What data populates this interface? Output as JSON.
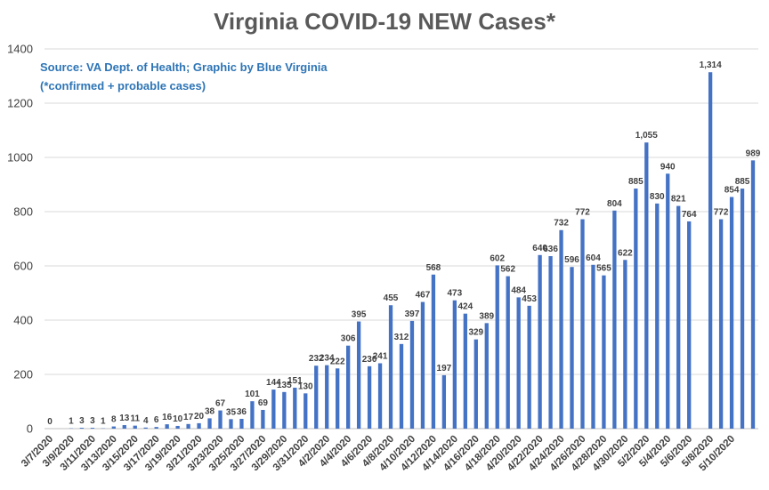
{
  "chart_data": {
    "type": "bar",
    "title": "Virginia COVID-19 NEW Cases*",
    "annotations": [
      "Source: VA Dept. of Health; Graphic by Blue Virginia",
      "(*confirmed + probable cases)"
    ],
    "ylim": [
      0,
      1400
    ],
    "yticks": [
      0,
      200,
      400,
      600,
      800,
      1000,
      1200,
      1400
    ],
    "grid": true,
    "legend": "none",
    "bar_color": "#4472c4",
    "x_tick_labels": [
      "3/7/2020",
      "3/9/2020",
      "3/11/2020",
      "3/13/2020",
      "3/15/2020",
      "3/17/2020",
      "3/19/2020",
      "3/21/2020",
      "3/23/2020",
      "3/25/2020",
      "3/27/2020",
      "3/29/2020",
      "3/31/2020",
      "4/2/2020",
      "4/4/2020",
      "4/6/2020",
      "4/8/2020",
      "4/10/2020",
      "4/12/2020",
      "4/14/2020",
      "4/16/2020",
      "4/18/2020",
      "4/20/2020",
      "4/22/2020",
      "4/24/2020",
      "4/26/2020",
      "4/28/2020",
      "4/30/2020",
      "5/2/2020",
      "5/4/2020",
      "5/6/2020",
      "5/8/2020",
      "5/10/2020"
    ],
    "data_labels": [
      "0",
      "",
      "1",
      "3",
      "3",
      "1",
      "8",
      "13",
      "11",
      "4",
      "6",
      "16",
      "10",
      "17",
      "20",
      "38",
      "67",
      "35",
      "36",
      "101",
      "69",
      "144",
      "135",
      "151",
      "130",
      "232",
      "234",
      "222",
      "306",
      "395",
      "230",
      "241",
      "455",
      "312",
      "397",
      "467",
      "568",
      "197",
      "473",
      "424",
      "329",
      "389",
      "602",
      "562",
      "484",
      "453",
      "640",
      "636",
      "732",
      "596",
      "772",
      "604",
      "565",
      "804",
      "622",
      "885",
      "1,055",
      "830",
      "940",
      "821",
      "764",
      "",
      "1,314",
      "772",
      "854",
      "885",
      "989"
    ],
    "values": [
      0,
      null,
      1,
      3,
      3,
      1,
      8,
      13,
      11,
      4,
      6,
      16,
      10,
      17,
      20,
      38,
      67,
      35,
      36,
      101,
      69,
      144,
      135,
      151,
      130,
      232,
      234,
      222,
      306,
      395,
      230,
      241,
      455,
      312,
      397,
      467,
      568,
      197,
      473,
      424,
      329,
      389,
      602,
      562,
      484,
      453,
      640,
      636,
      732,
      596,
      772,
      604,
      565,
      804,
      622,
      885,
      1055,
      830,
      940,
      821,
      764,
      null,
      1314,
      772,
      854,
      885,
      989
    ]
  }
}
